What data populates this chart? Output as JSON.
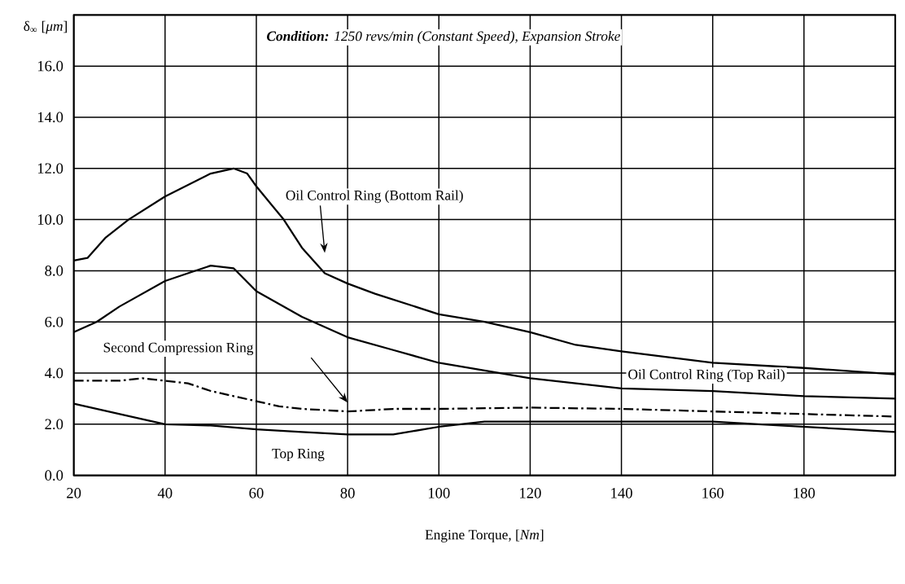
{
  "chart_data": {
    "type": "line",
    "title": "**Condition:**  1250 revs/min (Constant Speed), Expansion Stroke",
    "xlabel": "Engine Torque, [*Nm*]",
    "ylabel": "δ$_{∞}$ [*μm*]",
    "xlim": [
      20,
      200
    ],
    "ylim": [
      0,
      18
    ],
    "xticks": [
      20,
      40,
      60,
      80,
      100,
      120,
      140,
      160,
      180
    ],
    "yticks": [
      {
        "value": 0,
        "label": "0.0"
      },
      {
        "value": 2,
        "label": "2.0"
      },
      {
        "value": 4,
        "label": "4.0"
      },
      {
        "value": 6,
        "label": "6.0"
      },
      {
        "value": 8,
        "label": "8.0"
      },
      {
        "value": 10,
        "label": "10.0"
      },
      {
        "value": 12,
        "label": "12.0"
      },
      {
        "value": 14,
        "label": "14.0"
      },
      {
        "value": 16,
        "label": "16.0"
      }
    ],
    "grid": true,
    "legend": false,
    "marker": "none",
    "series": [
      {
        "name": "Oil Control Ring (Bottom Rail)",
        "color": "#000000",
        "line_style": "solid",
        "x": [
          20,
          23,
          27,
          32,
          40,
          50,
          55,
          58,
          60,
          66,
          70,
          75,
          80,
          86,
          100,
          110,
          120,
          130,
          140,
          160,
          180,
          200
        ],
        "values": [
          8.4,
          8.5,
          9.3,
          10.0,
          10.9,
          11.8,
          12.0,
          11.8,
          11.3,
          10.0,
          8.9,
          7.9,
          7.5,
          7.1,
          6.3,
          6.0,
          5.6,
          5.1,
          4.85,
          4.4,
          4.2,
          3.95
        ]
      },
      {
        "name": "Oil Control Ring (Top Rail)",
        "color": "#000000",
        "line_style": "solid",
        "x": [
          20,
          25,
          30,
          40,
          45,
          50,
          55,
          60,
          65,
          70,
          80,
          90,
          100,
          110,
          120,
          130,
          140,
          160,
          180,
          200
        ],
        "values": [
          5.6,
          6.0,
          6.6,
          7.6,
          7.9,
          8.2,
          8.1,
          7.2,
          6.7,
          6.2,
          5.4,
          4.9,
          4.4,
          4.1,
          3.8,
          3.6,
          3.4,
          3.3,
          3.1,
          3.0
        ]
      },
      {
        "name": "Second Compression Ring",
        "color": "#000000",
        "line_style": "dashdot",
        "x": [
          20,
          30,
          35,
          40,
          45,
          50,
          60,
          65,
          70,
          80,
          90,
          100,
          120,
          140,
          160,
          180,
          200
        ],
        "values": [
          3.7,
          3.7,
          3.8,
          3.7,
          3.6,
          3.3,
          2.9,
          2.7,
          2.6,
          2.5,
          2.6,
          2.6,
          2.65,
          2.6,
          2.5,
          2.4,
          2.3
        ]
      },
      {
        "name": "Top Ring",
        "color": "#000000",
        "line_style": "solid",
        "x": [
          20,
          30,
          40,
          50,
          60,
          70,
          80,
          90,
          100,
          110,
          120,
          140,
          160,
          170,
          180,
          190,
          200
        ],
        "values": [
          2.8,
          2.4,
          2.0,
          1.95,
          1.8,
          1.7,
          1.6,
          1.6,
          1.9,
          2.1,
          2.1,
          2.1,
          2.1,
          2.0,
          1.9,
          1.8,
          1.7
        ]
      }
    ]
  }
}
